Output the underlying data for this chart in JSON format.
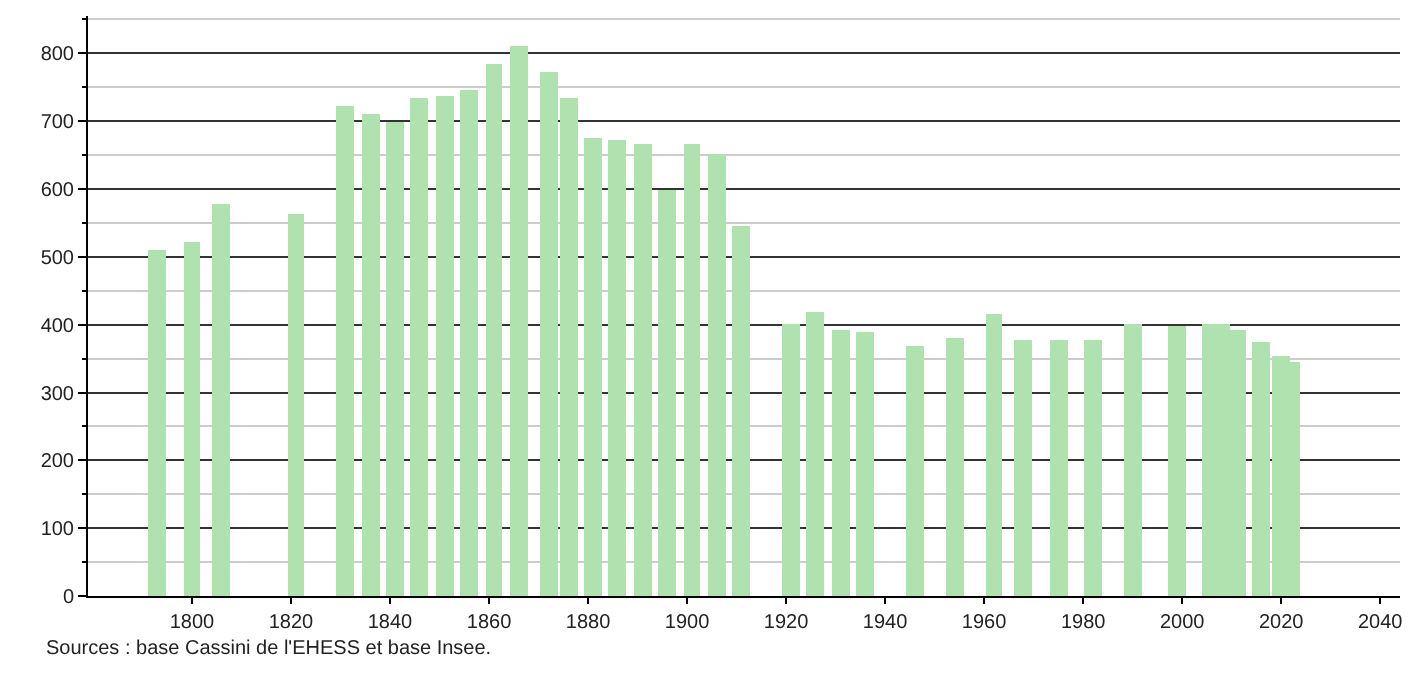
{
  "chart_data": {
    "type": "bar",
    "color": "#b0e2b0",
    "x": [
      1793,
      1800,
      1806,
      1821,
      1831,
      1836,
      1841,
      1846,
      1851,
      1856,
      1861,
      1866,
      1872,
      1876,
      1881,
      1886,
      1891,
      1896,
      1901,
      1906,
      1911,
      1921,
      1926,
      1931,
      1936,
      1946,
      1954,
      1962,
      1968,
      1975,
      1982,
      1990,
      1999,
      2006,
      2008,
      2011,
      2016,
      2020,
      2022
    ],
    "values": [
      510,
      521,
      577,
      562,
      721,
      712,
      700,
      733,
      736,
      745,
      783,
      810,
      771,
      733,
      674,
      672,
      665,
      598,
      665,
      653,
      544,
      400,
      418,
      393,
      389,
      368,
      380,
      415,
      377,
      377,
      377,
      400,
      398,
      402,
      402,
      393,
      374,
      353,
      345
    ],
    "xlim": [
      1779,
      2044
    ],
    "xticks": [
      1800,
      1820,
      1840,
      1860,
      1880,
      1900,
      1920,
      1940,
      1960,
      1980,
      2000,
      2020,
      2040
    ],
    "ylim": [
      0,
      855
    ],
    "yticks": [
      0,
      {
        "value": 50,
        "label": null
      },
      100,
      {
        "value": 150,
        "label": null
      },
      200,
      {
        "value": 250,
        "label": null
      },
      300,
      {
        "value": 350,
        "label": null
      },
      400,
      {
        "value": 450,
        "label": null
      },
      500,
      {
        "value": 550,
        "label": null
      },
      600,
      {
        "value": 650,
        "label": null
      },
      700,
      {
        "value": 750,
        "label": null
      },
      800,
      {
        "value": 850,
        "label": null
      }
    ],
    "grid": "y",
    "annotations": [
      "Sources : base Cassini de l'EHESS et base Insee."
    ]
  }
}
